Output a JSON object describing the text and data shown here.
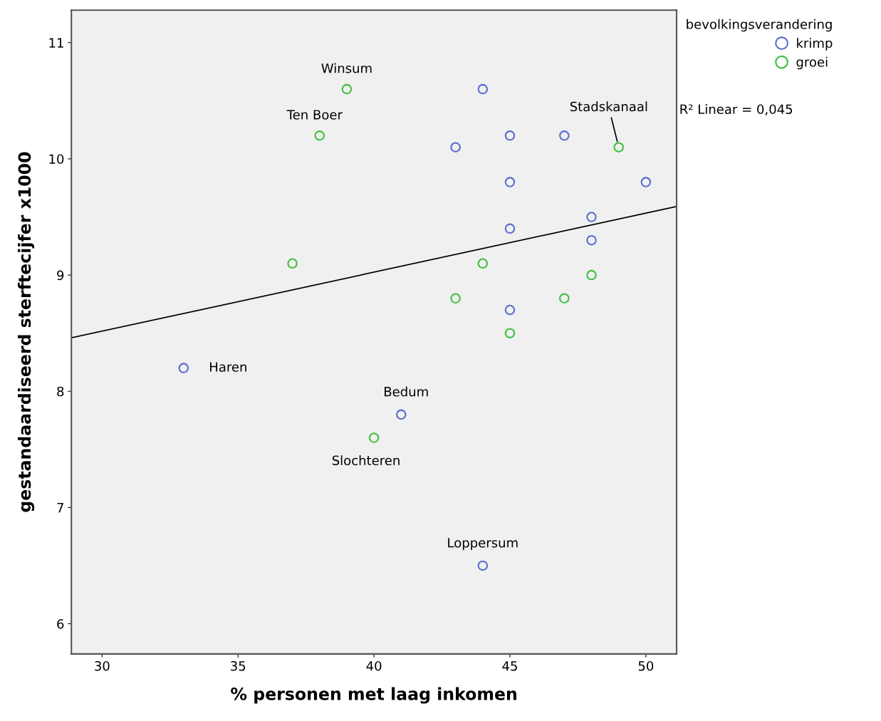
{
  "chart_data": {
    "type": "scatter",
    "xlabel": "% personen met laag inkomen",
    "ylabel": "gestandaardiseerd sterftecijfer x1000",
    "legend_title": "bevolkingsverandering",
    "legend": "top right",
    "grid": false,
    "marker": "circle",
    "xlim": [
      28.87,
      51.13
    ],
    "xticks": [
      30,
      35,
      40,
      45,
      50
    ],
    "ylim": [
      5.74,
      11.28
    ],
    "yticks": [
      6,
      7,
      8,
      9,
      10,
      11
    ],
    "series": [
      {
        "name": "krimp",
        "color": "#5a6bd0",
        "x": [
          44,
          43,
          45,
          47,
          45,
          50,
          48,
          45,
          48,
          45,
          33,
          41,
          44
        ],
        "values": [
          10.6,
          10.1,
          10.2,
          10.2,
          9.8,
          9.8,
          9.5,
          9.4,
          9.3,
          8.7,
          8.2,
          7.8,
          6.5
        ]
      },
      {
        "name": "groei",
        "color": "#3fbf3f",
        "x": [
          39,
          38,
          49,
          37,
          44,
          43,
          47,
          48,
          45,
          40
        ],
        "values": [
          10.6,
          10.2,
          10.1,
          9.1,
          9.1,
          8.8,
          8.8,
          9.0,
          8.5,
          7.6
        ]
      },
      {
        "type": "line",
        "color": "#000000",
        "marker": "none",
        "x": [
          28.87,
          51.13
        ],
        "values": [
          8.46,
          9.59
        ]
      }
    ],
    "annotations": [
      {
        "text": "Winsum",
        "x": 39,
        "y": 10.6
      },
      {
        "text": "Ten Boer",
        "x": 38,
        "y": 10.2
      },
      {
        "text": "Stadskanaal",
        "x": 49,
        "y": 10.1
      },
      {
        "text": "Haren",
        "x": 33,
        "y": 8.2
      },
      {
        "text": "Bedum",
        "x": 41,
        "y": 7.8
      },
      {
        "text": "Slochteren",
        "x": 40,
        "y": 7.6
      },
      {
        "text": "Loppersum",
        "x": 44,
        "y": 6.5
      },
      "R² Linear = 0,045"
    ]
  }
}
